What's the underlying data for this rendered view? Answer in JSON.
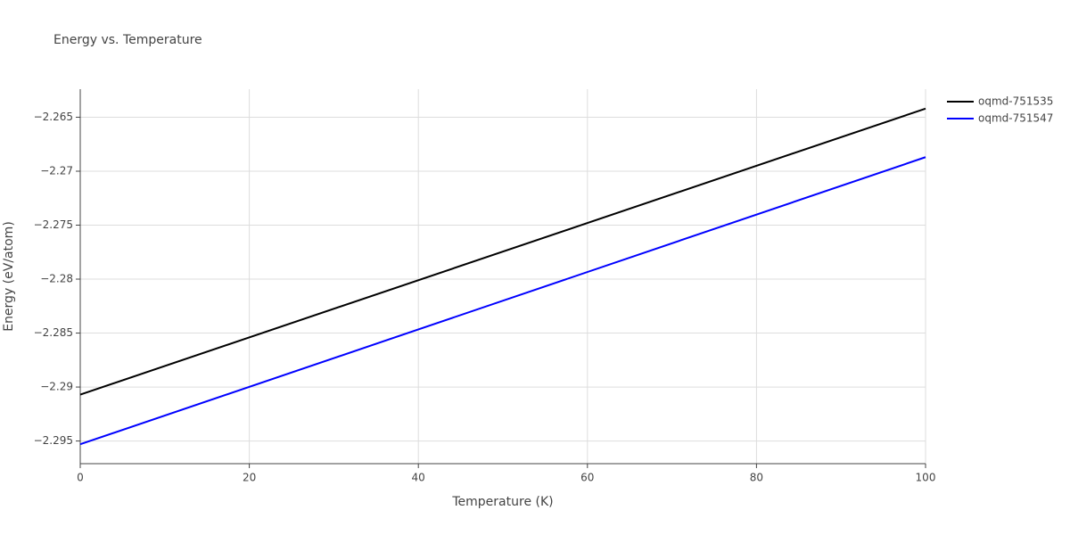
{
  "chart_data": {
    "type": "line",
    "title": "Energy vs. Temperature",
    "x_label": "Temperature (K)",
    "y_label": "Energy (eV/atom)",
    "x": [
      0,
      100
    ],
    "series": [
      {
        "name": "oqmd-751535",
        "color": "#000000",
        "values": [
          -2.2907,
          -2.2642
        ]
      },
      {
        "name": "oqmd-751547",
        "color": "#0000ff",
        "values": [
          -2.2953,
          -2.2687
        ]
      }
    ],
    "xlim": [
      0,
      100
    ],
    "xticks": [
      0,
      20,
      40,
      60,
      80,
      100
    ],
    "ylim": [
      -2.2971,
      -2.2624
    ],
    "yticks": [
      {
        "value": -2.295,
        "label": "−2.295"
      },
      {
        "value": -2.29,
        "label": "−2.29"
      },
      {
        "value": -2.285,
        "label": "−2.285"
      },
      {
        "value": -2.28,
        "label": "−2.28"
      },
      {
        "value": -2.275,
        "label": "−2.275"
      },
      {
        "value": -2.27,
        "label": "−2.27"
      },
      {
        "value": -2.265,
        "label": "−2.265"
      }
    ],
    "grid": true,
    "legend": "top-right"
  }
}
